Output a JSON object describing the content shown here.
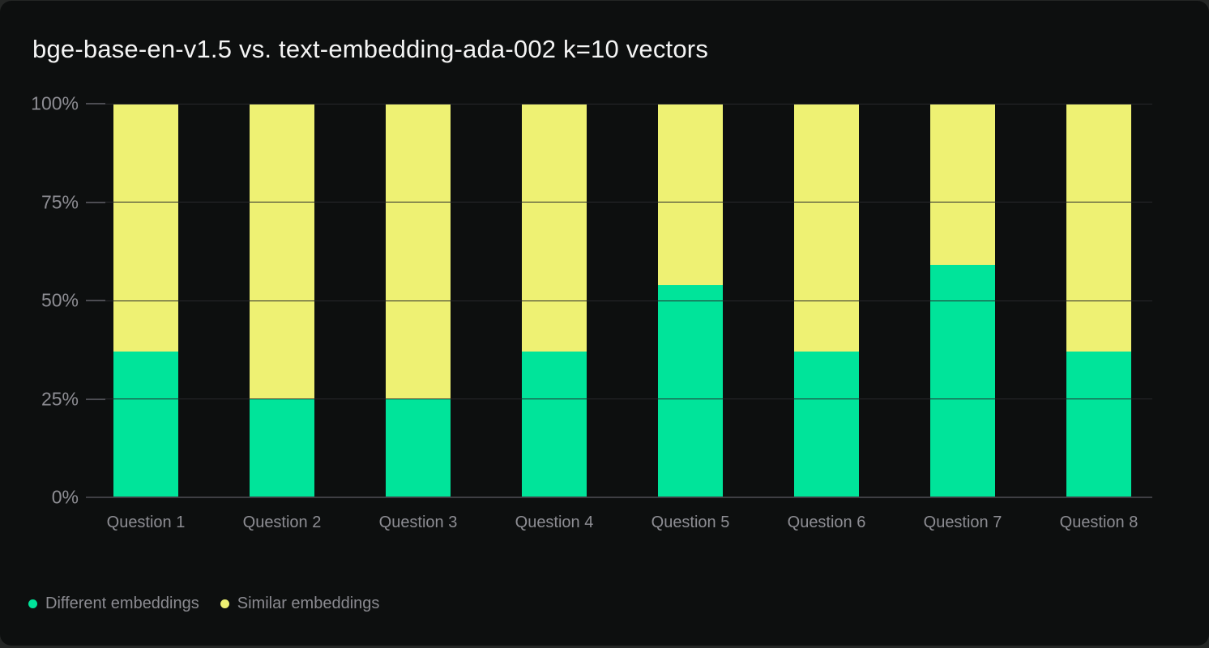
{
  "page": {
    "background": "#242625"
  },
  "card": {
    "background": "#0d0f0f",
    "title": "bge-base-en-v1.5 vs. text-embedding-ada-002 k=10 vectors"
  },
  "chart_data": {
    "type": "bar",
    "variant": "stacked-100-percent",
    "title": "bge-base-en-v1.5 vs. text-embedding-ada-002 k=10 vectors",
    "categories": [
      "Question 1",
      "Question 2",
      "Question 3",
      "Question 4",
      "Question 5",
      "Question 6",
      "Question 7",
      "Question 8"
    ],
    "series": [
      {
        "name": "Different embeddings",
        "color": "#00e49a",
        "values": [
          37,
          25,
          25,
          37,
          54,
          37,
          59,
          37
        ]
      },
      {
        "name": "Similar embeddings",
        "color": "#eef173",
        "values": [
          63,
          75,
          75,
          63,
          46,
          63,
          41,
          63
        ]
      }
    ],
    "value_unit": "%",
    "ylim": [
      0,
      100
    ],
    "y_axis": {
      "ticks": [
        {
          "label": "100%",
          "value": 100
        },
        {
          "label": "75%",
          "value": 75
        },
        {
          "label": "50%",
          "value": 50
        },
        {
          "label": "25%",
          "value": 25
        },
        {
          "label": "0%",
          "value": 0
        }
      ]
    },
    "grid": true,
    "legend_position": "bottom-left",
    "colors": {
      "title": "#f4f4f4",
      "grid": "#28282c",
      "tick": "#4c4c52",
      "axis": "#3e3e43",
      "axis_label": "#8d8d93",
      "legend_label": "#8b8b91"
    }
  }
}
